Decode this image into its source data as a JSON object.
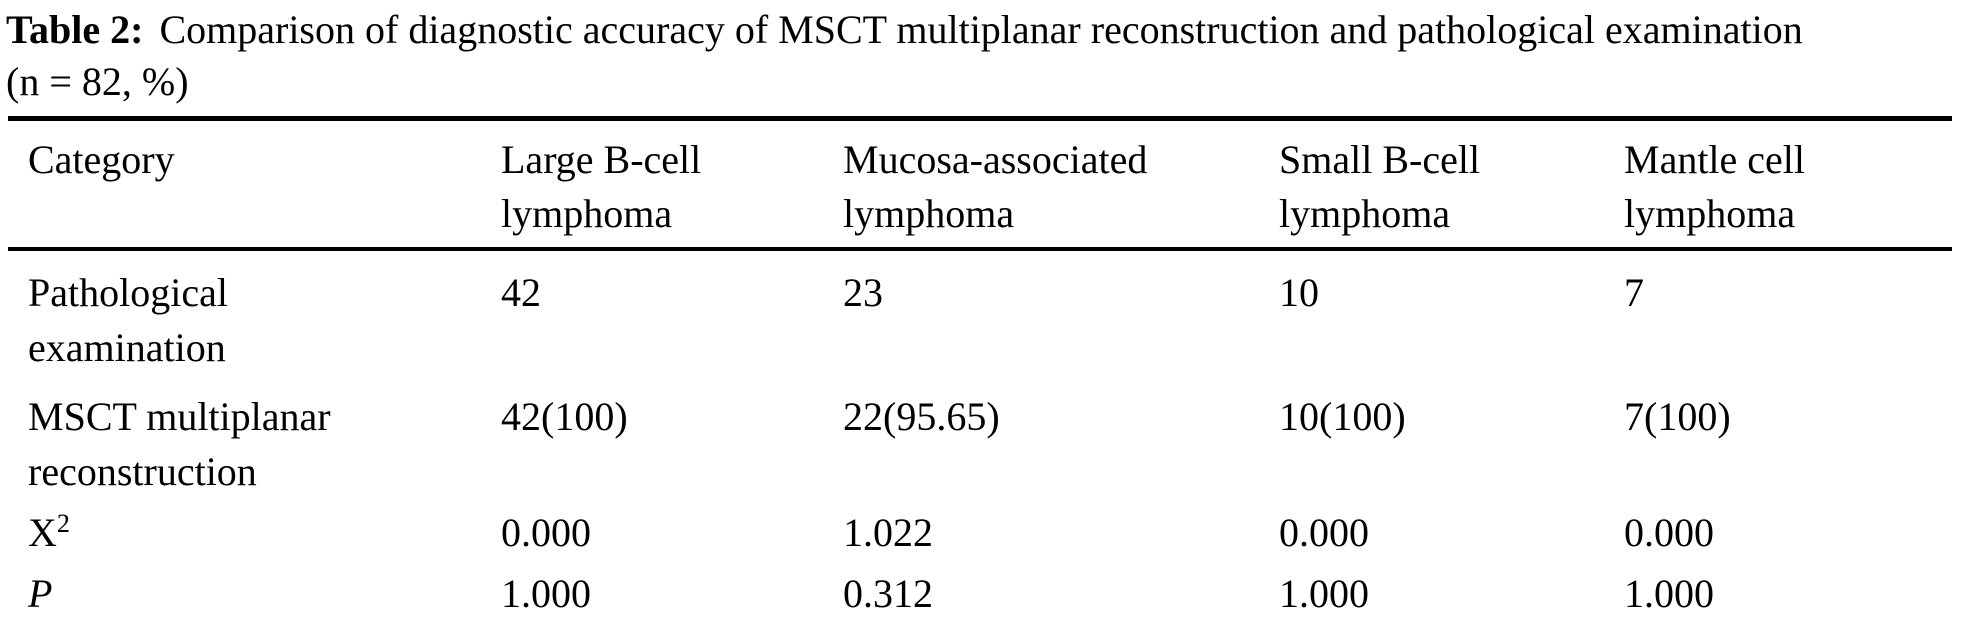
{
  "caption": {
    "label": "Table 2:",
    "line1": "Comparison of diagnostic accuracy of MSCT multiplanar reconstruction and pathological examination",
    "line2": "(n = 82, %)"
  },
  "table": {
    "headers": [
      "Category",
      "Large B-cell lymphoma",
      "Mucosa-associated lymphoma",
      "Small B-cell lymphoma",
      "Mantle cell lymphoma"
    ],
    "rows": [
      {
        "label": "Pathological examination",
        "cells": [
          "42",
          "23",
          "10",
          "7"
        ]
      },
      {
        "label": "MSCT multiplanar reconstruction",
        "cells": [
          "42(100)",
          "22(95.65)",
          "10(100)",
          "7(100)"
        ]
      },
      {
        "label": "X",
        "label_sup": "2",
        "cells": [
          "0.000",
          "1.022",
          "0.000",
          "0.000"
        ]
      },
      {
        "label": "P",
        "cells": [
          "1.000",
          "0.312",
          "1.000",
          "1.000"
        ]
      }
    ]
  }
}
